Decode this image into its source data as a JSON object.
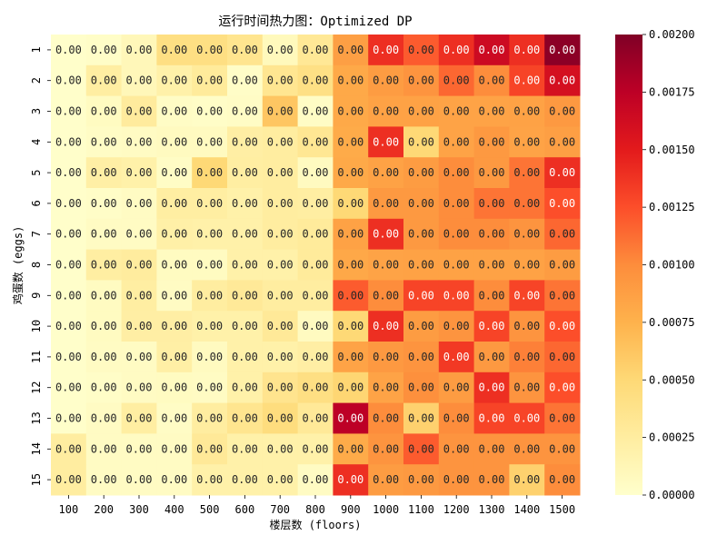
{
  "chart_data": {
    "type": "heatmap",
    "title": "运行时间热力图：Optimized DP",
    "xlabel": "楼层数 (floors)",
    "ylabel": "鸡蛋数 (eggs)",
    "x_categories": [
      "100",
      "200",
      "300",
      "400",
      "500",
      "600",
      "700",
      "800",
      "900",
      "1000",
      "1100",
      "1200",
      "1300",
      "1400",
      "1500"
    ],
    "y_categories": [
      "1",
      "2",
      "3",
      "4",
      "5",
      "6",
      "7",
      "8",
      "9",
      "10",
      "11",
      "12",
      "13",
      "14",
      "15"
    ],
    "cell_label_format": "0.00",
    "values": [
      [
        1e-05,
        3e-05,
        0.00011,
        0.00042,
        0.00042,
        0.00035,
        9e-05,
        0.00031,
        0.00088,
        0.0014,
        0.0012,
        0.0014,
        0.00165,
        0.0014,
        0.00195
      ],
      [
        1e-05,
        0.00024,
        0.00011,
        0.0002,
        0.00028,
        3e-05,
        0.00034,
        0.00041,
        0.00081,
        0.0009,
        0.00095,
        0.00115,
        0.001,
        0.0013,
        0.0016
      ],
      [
        1e-05,
        6e-05,
        0.00027,
        4e-05,
        3e-05,
        4e-05,
        0.00062,
        4e-05,
        0.00081,
        0.00086,
        0.00086,
        0.00085,
        0.00085,
        0.00086,
        0.00092
      ],
      [
        1e-05,
        4e-05,
        5e-05,
        7e-05,
        7e-05,
        0.00023,
        0.00025,
        0.00033,
        0.0008,
        0.0014,
        0.0005,
        0.00085,
        0.00092,
        0.00085,
        0.00088
      ],
      [
        1e-05,
        0.00022,
        0.0002,
        4e-05,
        0.0005,
        0.00024,
        0.00025,
        7e-05,
        0.00081,
        0.00086,
        0.0009,
        0.001,
        0.00092,
        0.0011,
        0.0014
      ],
      [
        1e-05,
        3e-05,
        5e-05,
        0.00024,
        0.00024,
        0.0002,
        0.00025,
        0.00024,
        0.0005,
        0.00092,
        0.00092,
        0.001,
        0.0011,
        0.0011,
        0.00125
      ],
      [
        1e-05,
        5e-05,
        5e-05,
        0.00021,
        0.0002,
        0.0002,
        0.00025,
        0.00028,
        0.00086,
        0.0014,
        0.00092,
        0.001,
        0.001,
        0.00095,
        0.00115
      ],
      [
        1e-05,
        0.00024,
        0.00026,
        6e-05,
        6e-05,
        0.0002,
        0.0002,
        0.00028,
        0.00082,
        0.00085,
        0.00086,
        0.00086,
        0.00086,
        0.00086,
        0.0009
      ],
      [
        1e-05,
        6e-05,
        0.00024,
        5e-05,
        0.00025,
        0.0003,
        0.00025,
        0.00025,
        0.0012,
        0.001,
        0.0013,
        0.0013,
        0.001,
        0.0013,
        0.0011
      ],
      [
        1e-05,
        6e-05,
        0.00023,
        0.00023,
        0.0002,
        0.0002,
        0.0003,
        7e-05,
        0.0005,
        0.0014,
        0.0009,
        0.00095,
        0.0013,
        0.00095,
        0.00125
      ],
      [
        1e-05,
        5e-05,
        5e-05,
        0.00022,
        7e-05,
        0.0002,
        0.0002,
        0.00023,
        0.00085,
        0.00092,
        0.00095,
        0.00135,
        0.00092,
        0.00105,
        0.00115
      ],
      [
        1e-05,
        3e-05,
        5e-05,
        6e-05,
        5e-05,
        0.0002,
        0.00036,
        0.00042,
        0.00052,
        0.00085,
        0.00098,
        0.0009,
        0.0014,
        0.00095,
        0.00125
      ],
      [
        1e-05,
        5e-05,
        0.00024,
        4e-05,
        0.00025,
        0.00035,
        0.00045,
        0.0003,
        0.00175,
        0.001,
        0.00055,
        0.001,
        0.0013,
        0.0013,
        0.0011
      ],
      [
        0.00025,
        5e-05,
        5e-05,
        5e-05,
        0.0003,
        0.0002,
        0.0002,
        0.0002,
        0.0008,
        0.00095,
        0.0012,
        0.00095,
        0.00095,
        0.00095,
        0.00095
      ],
      [
        0.00025,
        5e-05,
        5e-05,
        5e-05,
        0.0002,
        0.0002,
        0.0002,
        5e-05,
        0.0014,
        0.0009,
        0.00092,
        0.00095,
        0.00095,
        0.00055,
        0.001
      ]
    ],
    "colorbar": {
      "min": 0.0,
      "max": 0.002,
      "ticks": [
        "0.00000",
        "0.00025",
        "0.00050",
        "0.00075",
        "0.00100",
        "0.00125",
        "0.00150",
        "0.00175",
        "0.00200"
      ],
      "colormap": "YlOrRd"
    }
  }
}
